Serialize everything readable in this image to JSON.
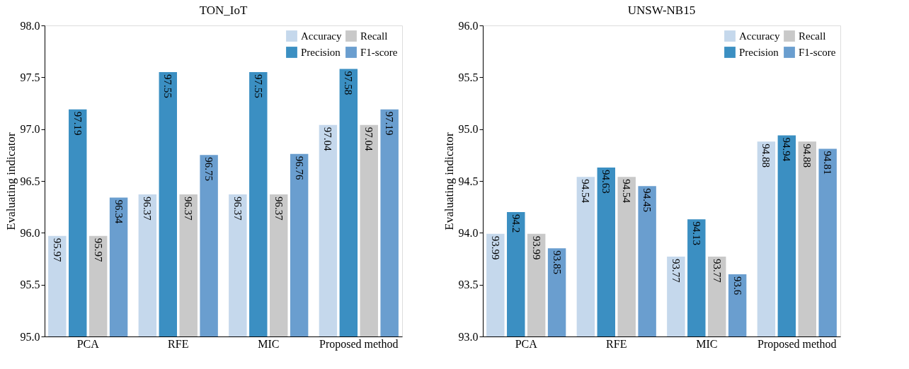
{
  "chart_data": [
    {
      "type": "bar",
      "title": "TON_IoT",
      "ylabel": "Evaluating indicator",
      "categories": [
        "PCA",
        "RFE",
        "MIC",
        "Proposed method"
      ],
      "series": [
        {
          "name": "Accuracy",
          "color": "#c5d8ec",
          "values": [
            95.97,
            96.37,
            96.37,
            97.04
          ]
        },
        {
          "name": "Precision",
          "color": "#3b8fc2",
          "values": [
            97.19,
            97.55,
            97.55,
            97.58
          ]
        },
        {
          "name": "Recall",
          "color": "#c9c9c9",
          "values": [
            95.97,
            96.37,
            96.37,
            97.04
          ]
        },
        {
          "name": "F1-score",
          "color": "#6a9ecf",
          "values": [
            96.34,
            96.75,
            96.76,
            97.19
          ]
        }
      ],
      "ylim": [
        95.0,
        98.0
      ],
      "yticks": [
        {
          "value": 95,
          "label": "95.0"
        },
        {
          "value": 95.5,
          "label": "95.5"
        },
        {
          "value": 96,
          "label": "96.0"
        },
        {
          "value": 96.5,
          "label": "96.5"
        },
        {
          "value": 97,
          "label": "97.0"
        },
        {
          "value": 97.5,
          "label": "97.5"
        },
        {
          "value": 98,
          "label": "98.0"
        }
      ],
      "data_labels": true,
      "legend": "top right",
      "grid": false
    },
    {
      "type": "bar",
      "title": "UNSW-NB15",
      "ylabel": "Evaluating indicator",
      "categories": [
        "PCA",
        "RFE",
        "MIC",
        "Proposed method"
      ],
      "series": [
        {
          "name": "Accuracy",
          "color": "#c5d8ec",
          "values": [
            93.99,
            94.54,
            93.77,
            94.88
          ]
        },
        {
          "name": "Precision",
          "color": "#3b8fc2",
          "values": [
            94.2,
            94.63,
            94.13,
            94.94
          ]
        },
        {
          "name": "Recall",
          "color": "#c9c9c9",
          "values": [
            93.99,
            94.54,
            93.77,
            94.88
          ]
        },
        {
          "name": "F1-score",
          "color": "#6a9ecf",
          "values": [
            93.85,
            94.45,
            93.6,
            94.81
          ]
        }
      ],
      "ylim": [
        93.0,
        96.0
      ],
      "yticks": [
        {
          "value": 93,
          "label": "93.0"
        },
        {
          "value": 93.5,
          "label": "93.5"
        },
        {
          "value": 94,
          "label": "94.0"
        },
        {
          "value": 94.5,
          "label": "94.5"
        },
        {
          "value": 95,
          "label": "95.0"
        },
        {
          "value": 95.5,
          "label": "95.5"
        },
        {
          "value": 96,
          "label": "96.0"
        }
      ],
      "data_labels": true,
      "legend": "top right",
      "grid": false
    }
  ]
}
